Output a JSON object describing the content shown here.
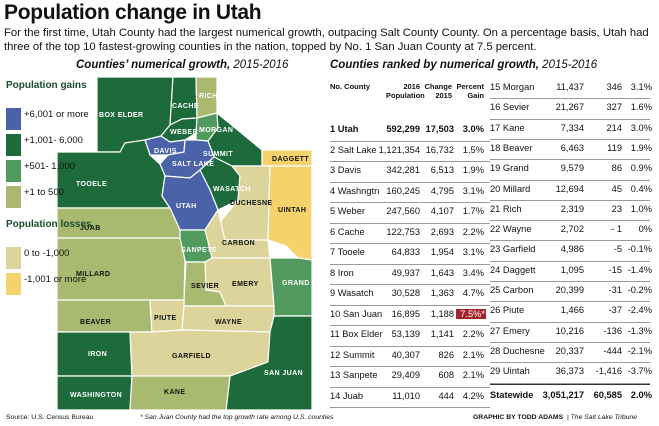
{
  "title": "Population change in Utah",
  "subtitle": "For the first time, Utah County had the largest numerical growth, outpacing Salt County County. On a percentage basis, Utah had three of the top 10 fastest-growing counties in the nation, topped by No. 1 San Juan County at 7.5 percent.",
  "map": {
    "heading": "Counties’ numerical growth,",
    "heading_years": "2015-2016",
    "legend": {
      "gains_title": "Population gains",
      "losses_title": "Population losses",
      "items": [
        {
          "label": "+6,001 or more",
          "color": "#4a63a8"
        },
        {
          "label": "+1,001- 6,000",
          "color": "#1d6b3a"
        },
        {
          "label": "+501- 1,000",
          "color": "#4f9a5c"
        },
        {
          "label": "+1 to 500",
          "color": "#a9b96f"
        },
        {
          "label": "0 to -1,000",
          "color": "#dcd49a"
        },
        {
          "label": "-1,001 or more",
          "color": "#f5d26b"
        }
      ]
    },
    "counties": [
      {
        "name": "CACHE"
      },
      {
        "name": "RICH"
      },
      {
        "name": "BOX ELDER"
      },
      {
        "name": "WEBER"
      },
      {
        "name": "MORGAN"
      },
      {
        "name": "DAVIS"
      },
      {
        "name": "SUMMIT"
      },
      {
        "name": "DAGGETT"
      },
      {
        "name": "SALT LAKE"
      },
      {
        "name": "TOOELE"
      },
      {
        "name": "WASATCH"
      },
      {
        "name": "UTAH"
      },
      {
        "name": "DUCHESNE"
      },
      {
        "name": "UINTAH"
      },
      {
        "name": "JUAB"
      },
      {
        "name": "CARBON"
      },
      {
        "name": "MILLARD"
      },
      {
        "name": "SANPETE"
      },
      {
        "name": "EMERY"
      },
      {
        "name": "GRAND"
      },
      {
        "name": "SEVIER"
      },
      {
        "name": "BEAVER"
      },
      {
        "name": "PIUTE"
      },
      {
        "name": "WAYNE"
      },
      {
        "name": "IRON"
      },
      {
        "name": "GARFIELD"
      },
      {
        "name": "SAN JUAN"
      },
      {
        "name": "WASHINGTON"
      },
      {
        "name": "KANE"
      }
    ]
  },
  "table": {
    "heading": "Counties ranked by numerical growth,",
    "heading_years": "2015-2016",
    "col_no_county": "No. County",
    "col_pop": "2016 Population",
    "col_change": "Change 2015",
    "col_pct": "Percent Gain",
    "left_rows": [
      {
        "county": "1 Utah",
        "pop": "592,299",
        "change": "17,503",
        "pct": "3.0%"
      },
      {
        "county": "2 Salt Lake",
        "pop": "1,121,354",
        "change": "16,732",
        "pct": "1.5%"
      },
      {
        "county": "3 Davis",
        "pop": "342,281",
        "change": "6,513",
        "pct": "1.9%"
      },
      {
        "county": "4 Washngtn",
        "pop": "160,245",
        "change": "4,795",
        "pct": "3.1%"
      },
      {
        "county": "5 Weber",
        "pop": "247,560",
        "change": "4,107",
        "pct": "1.7%"
      },
      {
        "county": "6 Cache",
        "pop": "122,753",
        "change": "2,693",
        "pct": "2.2%"
      },
      {
        "county": "7 Tooele",
        "pop": "64,833",
        "change": "1,954",
        "pct": "3.1%"
      },
      {
        "county": "8 Iron",
        "pop": "49,937",
        "change": "1,643",
        "pct": "3.4%"
      },
      {
        "county": "9 Wasatch",
        "pop": "30,528",
        "change": "1,363",
        "pct": "4.7%"
      },
      {
        "county": "10 San Juan",
        "pop": "16,895",
        "change": "1,188",
        "pct": "7.5%*"
      },
      {
        "county": "11 Box Elder",
        "pop": "53,139",
        "change": "1,141",
        "pct": "2.2%"
      },
      {
        "county": "12 Summit",
        "pop": "40,307",
        "change": "826",
        "pct": "2.1%"
      },
      {
        "county": "13 Sanpete",
        "pop": "29,409",
        "change": "608",
        "pct": "2.1%"
      },
      {
        "county": "14 Juab",
        "pop": "11,010",
        "change": "444",
        "pct": "4.2%"
      }
    ],
    "right_rows": [
      {
        "county": "15 Morgan",
        "pop": "11,437",
        "change": "346",
        "pct": "3.1%"
      },
      {
        "county": "16 Sevier",
        "pop": "21,267",
        "change": "327",
        "pct": "1.6%"
      },
      {
        "county": "17 Kane",
        "pop": "7,334",
        "change": "214",
        "pct": "3.0%"
      },
      {
        "county": "18 Beaver",
        "pop": "6,463",
        "change": "119",
        "pct": "1.9%"
      },
      {
        "county": "19 Grand",
        "pop": "9,579",
        "change": "86",
        "pct": "0.9%"
      },
      {
        "county": "20 Millard",
        "pop": "12,694",
        "change": "45",
        "pct": "0.4%"
      },
      {
        "county": "21 Rich",
        "pop": "2,319",
        "change": "23",
        "pct": "1.0%"
      },
      {
        "county": "22 Wayne",
        "pop": "2,702",
        "change": "- 1",
        "pct": "0%"
      },
      {
        "county": "23 Garfield",
        "pop": "4,986",
        "change": "-5",
        "pct": "-0.1%"
      },
      {
        "county": "24 Daggett",
        "pop": "1,095",
        "change": "-15",
        "pct": "-1.4%"
      },
      {
        "county": "25 Carbon",
        "pop": "20,399",
        "change": "-31",
        "pct": "-0.2%"
      },
      {
        "county": "26 Piute",
        "pop": "1,466",
        "change": "-37",
        "pct": "-2.4%"
      },
      {
        "county": "27 Emery",
        "pop": "10,216",
        "change": "-136",
        "pct": "-1.3%"
      },
      {
        "county": "28 Duchesne",
        "pop": "20,337",
        "change": "-444",
        "pct": "-2.1%"
      },
      {
        "county": "29 Uintah",
        "pop": "36,373",
        "change": "-1,416",
        "pct": "-3.7%"
      }
    ],
    "statewide": {
      "label": "Statewide",
      "pop": "3,051,217",
      "change": "60,585",
      "pct": "2.0%"
    }
  },
  "footer": {
    "source": "Source: U.S. Census Bureau",
    "note": "* San Juan County had the top growth rate among U.S. counties",
    "credit": "GRAPHIC BY TODD ADAMS",
    "paper": "The Salt Lake Tribune"
  }
}
